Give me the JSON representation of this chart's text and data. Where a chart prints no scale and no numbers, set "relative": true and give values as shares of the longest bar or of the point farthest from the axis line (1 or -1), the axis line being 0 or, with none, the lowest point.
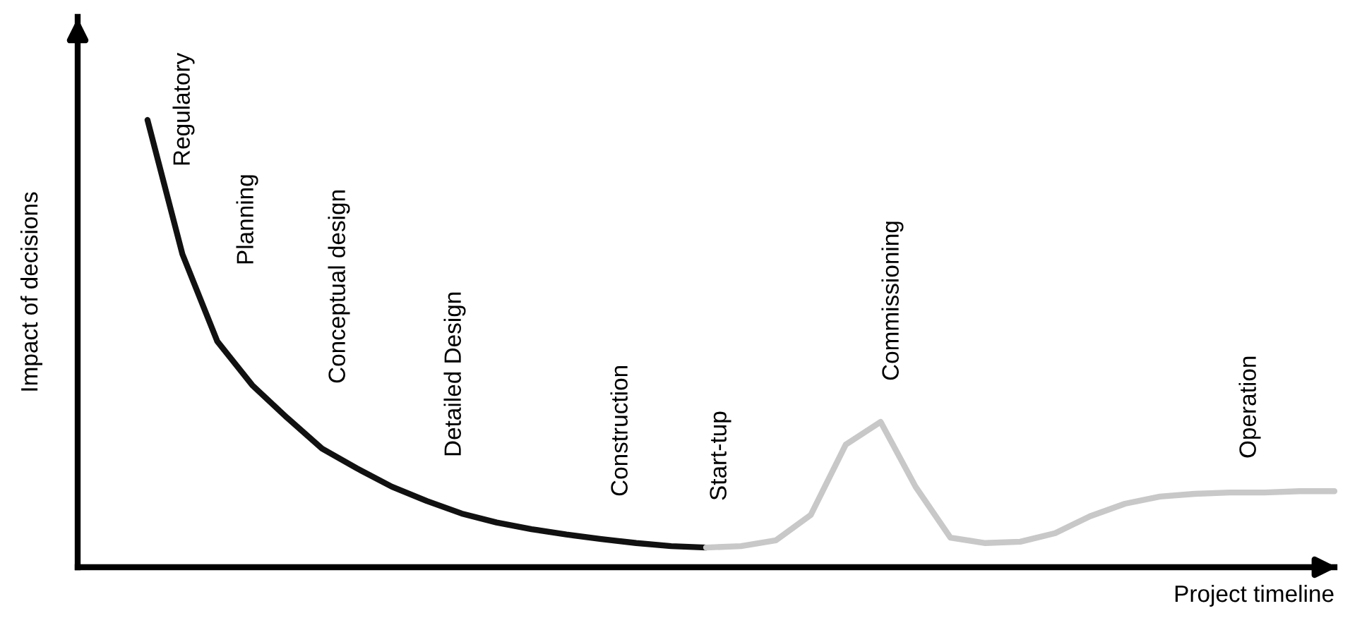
{
  "chart_data": {
    "type": "line",
    "relative": true,
    "xlabel": "Project timeline",
    "ylabel": "Impact of decisions",
    "categories": [
      null,
      null,
      null,
      null,
      null,
      null,
      null,
      null,
      null,
      null,
      null,
      null,
      null,
      null,
      null,
      null,
      null,
      null,
      null,
      null,
      null,
      null,
      null,
      null,
      null,
      null,
      null,
      null,
      null,
      null,
      null,
      null,
      null,
      null,
      null
    ],
    "series": [
      {
        "color": "#111111",
        "values": [
          1.0,
          0.7,
          0.505,
          0.407,
          0.334,
          0.265,
          0.221,
          0.18,
          0.148,
          0.12,
          0.1,
          0.085,
          0.073,
          0.063,
          0.054,
          0.047,
          0.044,
          null,
          null,
          null,
          null,
          null,
          null,
          null,
          null,
          null,
          null,
          null,
          null,
          null,
          null,
          null,
          null,
          null,
          null
        ]
      },
      {
        "color": "#c8c8c8",
        "values": [
          null,
          null,
          null,
          null,
          null,
          null,
          null,
          null,
          null,
          null,
          null,
          null,
          null,
          null,
          null,
          null,
          0.044,
          0.047,
          0.06,
          0.117,
          0.274,
          0.325,
          0.18,
          0.066,
          0.054,
          0.057,
          0.076,
          0.114,
          0.142,
          0.158,
          0.164,
          0.167,
          0.167,
          0.17,
          0.17
        ]
      }
    ],
    "annotations": [
      "Regulatory",
      "Planning",
      "Conceptual design",
      "Detailed Design",
      "Construction",
      "Start-tup",
      "Commissioning",
      "Operation"
    ],
    "grid": false,
    "legend": false,
    "marker": "none",
    "line_style": "solid"
  }
}
